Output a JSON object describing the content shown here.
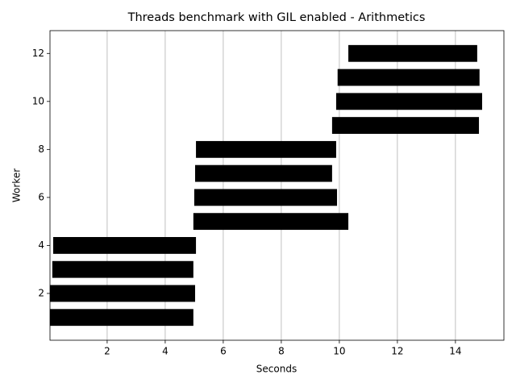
{
  "chart_data": {
    "type": "broken_barh",
    "title": "Threads benchmark with GIL enabled - Arithmetics",
    "x_label": "Seconds",
    "y_label": "Worker",
    "workers": [
      1,
      2,
      3,
      4,
      5,
      6,
      7,
      8,
      9,
      10,
      11,
      12
    ],
    "start": [
      0.03,
      0.03,
      0.11,
      0.14,
      4.97,
      5.0,
      5.03,
      5.06,
      9.75,
      9.89,
      9.94,
      10.31
    ],
    "end": [
      4.97,
      5.03,
      4.97,
      5.06,
      10.31,
      9.92,
      9.75,
      9.89,
      14.81,
      14.92,
      14.83,
      14.75
    ],
    "bar_height": 0.7,
    "color": "#000000",
    "xlim": [
      0.03,
      15.67
    ],
    "xticks": [
      2,
      4,
      6,
      8,
      10,
      12,
      14
    ],
    "ylim": [
      0.05,
      12.95
    ],
    "yticks": [
      2,
      4,
      6,
      8,
      10,
      12
    ],
    "grid": "x"
  }
}
